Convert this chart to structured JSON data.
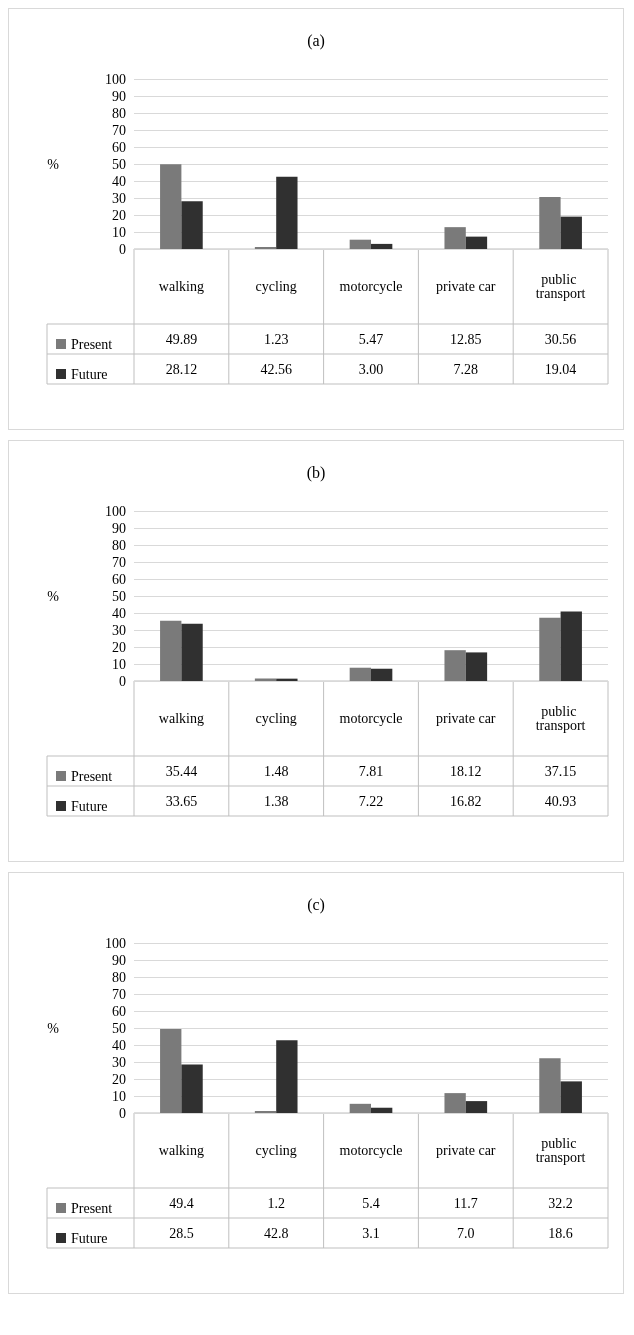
{
  "chart_data": [
    {
      "type": "bar",
      "title": "(a)",
      "ylabel": "%",
      "categories": [
        "walking",
        "cycling",
        "motorcycle",
        "private car",
        "public transport"
      ],
      "ylim": [
        0,
        100
      ],
      "yticks": [
        0,
        10,
        20,
        30,
        40,
        50,
        60,
        70,
        80,
        90,
        100
      ],
      "grid": "y",
      "legend": "bottom left",
      "series": [
        {
          "name": "Present",
          "color": "#7a7a7a",
          "values": [
            49.89,
            1.23,
            5.47,
            12.85,
            30.56
          ],
          "value_labels": [
            "49.89",
            "1.23",
            "5.47",
            "12.85",
            "30.56"
          ]
        },
        {
          "name": "Future",
          "color": "#303030",
          "values": [
            28.12,
            42.56,
            3.0,
            7.28,
            19.04
          ],
          "value_labels": [
            "28.12",
            "42.56",
            "3.00",
            "7.28",
            "19.04"
          ]
        }
      ]
    },
    {
      "type": "bar",
      "title": "(b)",
      "ylabel": "%",
      "categories": [
        "walking",
        "cycling",
        "motorcycle",
        "private car",
        "public transport"
      ],
      "ylim": [
        0,
        100
      ],
      "yticks": [
        0,
        10,
        20,
        30,
        40,
        50,
        60,
        70,
        80,
        90,
        100
      ],
      "grid": "y",
      "legend": "bottom left",
      "series": [
        {
          "name": "Present",
          "color": "#7a7a7a",
          "values": [
            35.44,
            1.48,
            7.81,
            18.12,
            37.15
          ],
          "value_labels": [
            "35.44",
            "1.48",
            "7.81",
            "18.12",
            "37.15"
          ]
        },
        {
          "name": "Future",
          "color": "#303030",
          "values": [
            33.65,
            1.38,
            7.22,
            16.82,
            40.93
          ],
          "value_labels": [
            "33.65",
            "1.38",
            "7.22",
            "16.82",
            "40.93"
          ]
        }
      ]
    },
    {
      "type": "bar",
      "title": "(c)",
      "ylabel": "%",
      "categories": [
        "walking",
        "cycling",
        "motorcycle",
        "private car",
        "public transport"
      ],
      "ylim": [
        0,
        100
      ],
      "yticks": [
        0,
        10,
        20,
        30,
        40,
        50,
        60,
        70,
        80,
        90,
        100
      ],
      "grid": "y",
      "legend": "bottom left",
      "series": [
        {
          "name": "Present",
          "color": "#7a7a7a",
          "values": [
            49.4,
            1.2,
            5.4,
            11.7,
            32.2
          ],
          "value_labels": [
            "49.4",
            "1.2",
            "5.4",
            "11.7",
            "32.2"
          ]
        },
        {
          "name": "Future",
          "color": "#303030",
          "values": [
            28.5,
            42.8,
            3.1,
            7.0,
            18.6
          ],
          "value_labels": [
            "28.5",
            "42.8",
            "3.1",
            "7.0",
            "18.6"
          ]
        }
      ]
    }
  ]
}
